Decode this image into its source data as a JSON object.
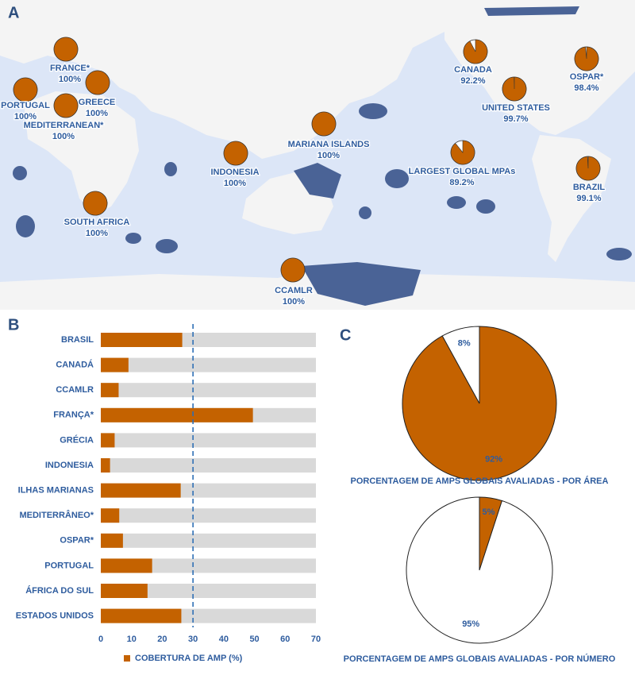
{
  "chart_data": [
    {
      "type": "map-pies",
      "panel": "A",
      "categories": [
        "FRANCE*",
        "PORTUGAL",
        "GREECE",
        "MEDITERRANEAN*",
        "SOUTH AFRICA",
        "INDONESIA",
        "MARIANA ISLANDS",
        "CCAMLR",
        "CANADA",
        "UNITED STATES",
        "OSPAR*",
        "LARGEST GLOBAL MPAs",
        "BRAZIL"
      ],
      "values": [
        100,
        100,
        100,
        100,
        100,
        100,
        100,
        100,
        92.2,
        99.7,
        98.4,
        89.2,
        99.1
      ],
      "value_labels": [
        "100%",
        "100%",
        "100%",
        "100%",
        "100%",
        "100%",
        "100%",
        "100%",
        "92.2%",
        "99.7%",
        "98.4%",
        "89.2%",
        "99.1%"
      ],
      "colors": [
        "#c46200",
        "#ffffff"
      ]
    },
    {
      "type": "hbar",
      "panel": "B",
      "categories": [
        "BRASIL",
        "CANADÁ",
        "CCAMLR",
        "FRANÇA*",
        "GRÉCIA",
        "INDONESIA",
        "ILHAS MARIANAS",
        "MEDITERRÂNEO*",
        "OSPAR*",
        "PORTUGAL",
        "ÁFRICA DO SUL",
        "ESTADOS UNIDOS"
      ],
      "series": [
        {
          "name": "COBERTURA DE AMP (%)",
          "color": "#c46200",
          "values": [
            26.5,
            9,
            5.8,
            49.5,
            4.5,
            3,
            26,
            6,
            7.2,
            16.7,
            15.2,
            26.2
          ]
        }
      ],
      "xlim": [
        0,
        70
      ],
      "xticks": [
        0,
        10,
        20,
        30,
        40,
        50,
        60,
        70
      ],
      "reference_line": 30,
      "background_color": "#d9d9d9"
    },
    {
      "type": "pie",
      "panel": "C",
      "title": "PORCENTAGEM DE AMPS GLOBAIS AVALIADAS - POR ÁREA",
      "values": [
        92,
        8
      ],
      "value_labels": [
        "92%",
        "8%"
      ],
      "colors": [
        "#c46200",
        "#ffffff"
      ]
    },
    {
      "type": "pie",
      "title": "PORCENTAGEM DE AMPS GLOBAIS AVALIADAS - POR NÚMERO",
      "values": [
        5,
        95
      ],
      "value_labels": [
        "5%",
        "95%"
      ],
      "colors": [
        "#c46200",
        "#ffffff"
      ]
    }
  ]
}
